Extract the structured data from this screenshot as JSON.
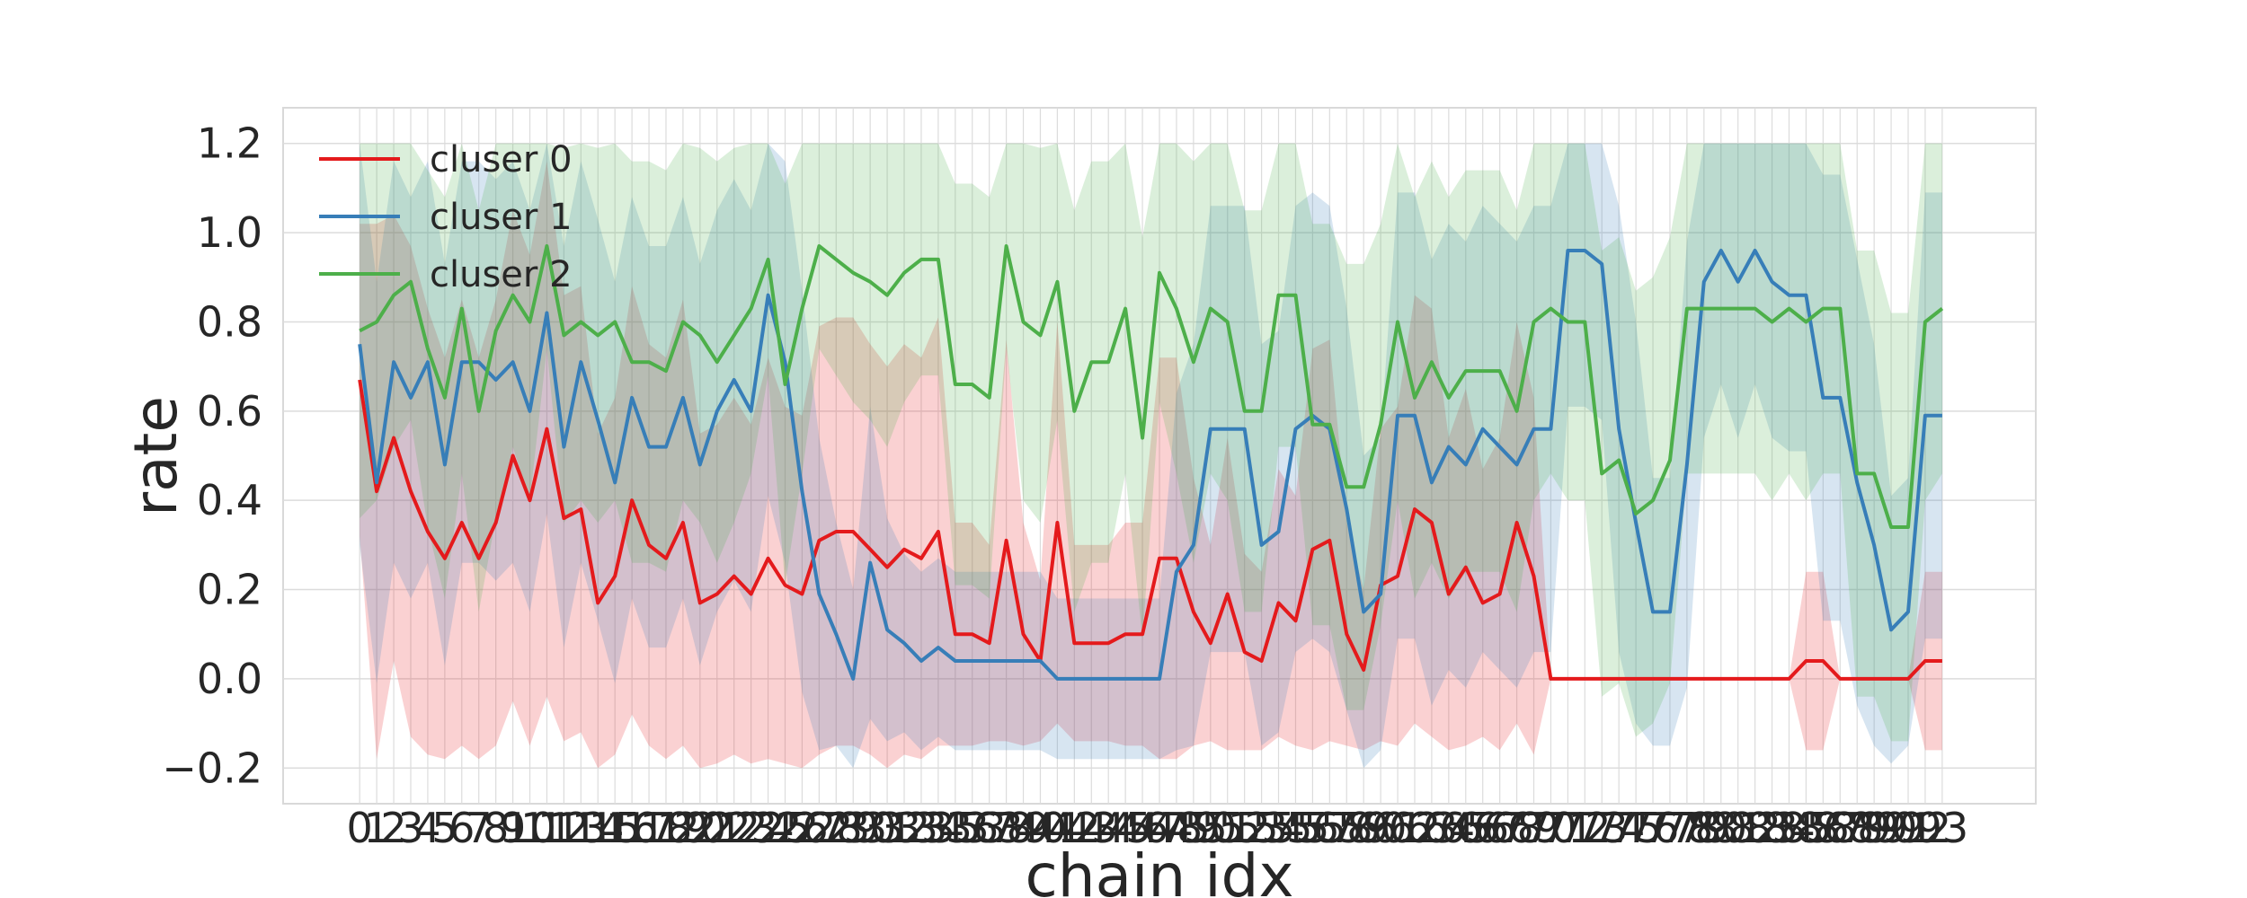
{
  "chart_data": {
    "type": "line",
    "xlabel": "chain  idx",
    "ylabel": "rate",
    "x_ticks": [
      "0",
      "1",
      "2",
      "3",
      "4",
      "5",
      "6",
      "7",
      "8",
      "9",
      "10",
      "11",
      "12",
      "13",
      "14",
      "15",
      "16",
      "17",
      "18",
      "19",
      "20",
      "21",
      "22",
      "23",
      "24",
      "25",
      "26",
      "27",
      "28",
      "29",
      "30",
      "31",
      "32",
      "33",
      "34",
      "35",
      "36",
      "37",
      "38",
      "39",
      "40",
      "41",
      "42",
      "43",
      "44",
      "45",
      "46",
      "47",
      "48",
      "49",
      "50",
      "51",
      "52",
      "53",
      "54",
      "55",
      "56",
      "57",
      "58",
      "59",
      "60",
      "61",
      "62",
      "63",
      "64",
      "65",
      "66",
      "67",
      "68",
      "69",
      "70",
      "71",
      "72",
      "73",
      "74",
      "75",
      "76",
      "77",
      "78",
      "79",
      "80",
      "81",
      "82",
      "83",
      "84",
      "85",
      "86",
      "87",
      "88",
      "89",
      "90",
      "91",
      "92",
      "93"
    ],
    "xlim": [
      -4.5,
      98.5
    ],
    "ylim": [
      -0.28,
      1.28
    ],
    "y_ticks": [
      -0.2,
      0.0,
      0.2,
      0.4,
      0.6,
      0.8,
      1.0,
      1.2
    ],
    "y_tick_labels": [
      "−0.2",
      "0.0",
      "0.2",
      "0.4",
      "0.6",
      "0.8",
      "1.0",
      "1.2"
    ],
    "grid": true,
    "legend_position": "top-left",
    "series": [
      {
        "name": "cluser 0",
        "color": "#e41a1c",
        "values": [
          0.67,
          0.42,
          0.54,
          0.42,
          0.33,
          0.27,
          0.35,
          0.27,
          0.35,
          0.5,
          0.4,
          0.56,
          0.36,
          0.38,
          0.17,
          0.23,
          0.4,
          0.3,
          0.27,
          0.35,
          0.17,
          0.19,
          0.23,
          0.19,
          0.27,
          0.21,
          0.19,
          0.31,
          0.33,
          0.33,
          0.29,
          0.25,
          0.29,
          0.27,
          0.33,
          0.1,
          0.1,
          0.08,
          0.31,
          0.1,
          0.04,
          0.35,
          0.08,
          0.08,
          0.08,
          0.1,
          0.1,
          0.27,
          0.27,
          0.15,
          0.08,
          0.19,
          0.06,
          0.04,
          0.17,
          0.13,
          0.29,
          0.31,
          0.1,
          0.02,
          0.21,
          0.23,
          0.38,
          0.35,
          0.19,
          0.25,
          0.17,
          0.19,
          0.35,
          0.23,
          0,
          0,
          0,
          0,
          0,
          0,
          0,
          0,
          0,
          0,
          0,
          0,
          0,
          0,
          0,
          0.04,
          0.04,
          0,
          0,
          0,
          0,
          0,
          0.04,
          0.04
        ],
        "band": [
          0.35,
          0.6,
          0.5,
          0.55,
          0.5,
          0.45,
          0.5,
          0.45,
          0.5,
          0.55,
          0.55,
          0.6,
          0.5,
          0.5,
          0.38,
          0.4,
          0.48,
          0.45,
          0.45,
          0.5,
          0.38,
          0.38,
          0.4,
          0.38,
          0.45,
          0.4,
          0.4,
          0.48,
          0.48,
          0.48,
          0.46,
          0.45,
          0.46,
          0.45,
          0.48,
          0.25,
          0.25,
          0.22,
          0.45,
          0.25,
          0.18,
          0.45,
          0.22,
          0.22,
          0.22,
          0.25,
          0.25,
          0.45,
          0.45,
          0.3,
          0.22,
          0.35,
          0.22,
          0.2,
          0.3,
          0.28,
          0.45,
          0.45,
          0.25,
          0.18,
          0.35,
          0.38,
          0.48,
          0.48,
          0.35,
          0.4,
          0.3,
          0.35,
          0.45,
          0.4,
          0,
          0,
          0,
          0,
          0,
          0,
          0,
          0,
          0,
          0,
          0,
          0,
          0,
          0,
          0,
          0.2,
          0.2,
          0,
          0,
          0,
          0,
          0,
          0.2,
          0.2
        ]
      },
      {
        "name": "cluser 1",
        "color": "#377eb8",
        "values": [
          0.75,
          0.44,
          0.71,
          0.63,
          0.71,
          0.48,
          0.71,
          0.71,
          0.67,
          0.71,
          0.6,
          0.82,
          0.52,
          0.71,
          0.58,
          0.44,
          0.63,
          0.52,
          0.52,
          0.63,
          0.48,
          0.6,
          0.67,
          0.6,
          0.86,
          0.71,
          0.42,
          0.19,
          0.1,
          0,
          0.26,
          0.11,
          0.08,
          0.04,
          0.07,
          0.04,
          0.04,
          0.04,
          0.04,
          0.04,
          0.04,
          0,
          0,
          0,
          0,
          0,
          0,
          0,
          0.24,
          0.3,
          0.56,
          0.56,
          0.56,
          0.3,
          0.33,
          0.56,
          0.59,
          0.56,
          0.38,
          0.15,
          0.19,
          0.59,
          0.59,
          0.44,
          0.52,
          0.48,
          0.56,
          0.52,
          0.48,
          0.56,
          0.56,
          0.96,
          0.96,
          0.93,
          0.56,
          0.35,
          0.15,
          0.15,
          0.48,
          0.89,
          0.96,
          0.89,
          0.96,
          0.89,
          0.86,
          0.86,
          0.63,
          0.63,
          0.44,
          0.3,
          0.11,
          0.15,
          0.59,
          0.59
        ],
        "band": [
          0.45,
          0.45,
          0.45,
          0.45,
          0.45,
          0.45,
          0.45,
          0.45,
          0.45,
          0.45,
          0.45,
          0.45,
          0.45,
          0.45,
          0.45,
          0.45,
          0.45,
          0.45,
          0.45,
          0.45,
          0.45,
          0.45,
          0.45,
          0.45,
          0.45,
          0.45,
          0.45,
          0.35,
          0.25,
          0.2,
          0.35,
          0.25,
          0.2,
          0.2,
          0.2,
          0.2,
          0.2,
          0.2,
          0.2,
          0.2,
          0.2,
          0.18,
          0.18,
          0.18,
          0.18,
          0.18,
          0.18,
          0.18,
          0.4,
          0.45,
          0.5,
          0.5,
          0.5,
          0.45,
          0.45,
          0.5,
          0.5,
          0.5,
          0.45,
          0.35,
          0.35,
          0.5,
          0.5,
          0.5,
          0.5,
          0.5,
          0.5,
          0.5,
          0.5,
          0.5,
          0.5,
          0.35,
          0.35,
          0.35,
          0.5,
          0.45,
          0.3,
          0.3,
          0.5,
          0.35,
          0.3,
          0.35,
          0.3,
          0.35,
          0.35,
          0.35,
          0.5,
          0.5,
          0.5,
          0.45,
          0.3,
          0.3,
          0.5,
          0.5
        ]
      },
      {
        "name": "cluser 2",
        "color": "#4daf4a",
        "values": [
          0.78,
          0.8,
          0.86,
          0.89,
          0.74,
          0.63,
          0.83,
          0.6,
          0.78,
          0.86,
          0.8,
          0.97,
          0.77,
          0.8,
          0.77,
          0.8,
          0.71,
          0.71,
          0.69,
          0.8,
          0.77,
          0.71,
          0.77,
          0.83,
          0.94,
          0.66,
          0.83,
          0.97,
          0.94,
          0.91,
          0.89,
          0.86,
          0.91,
          0.94,
          0.94,
          0.66,
          0.66,
          0.63,
          0.97,
          0.8,
          0.77,
          0.89,
          0.6,
          0.71,
          0.71,
          0.83,
          0.54,
          0.91,
          0.83,
          0.71,
          0.83,
          0.8,
          0.6,
          0.6,
          0.86,
          0.86,
          0.57,
          0.57,
          0.43,
          0.43,
          0.57,
          0.8,
          0.63,
          0.71,
          0.63,
          0.69,
          0.69,
          0.69,
          0.6,
          0.8,
          0.83,
          0.8,
          0.8,
          0.46,
          0.49,
          0.37,
          0.4,
          0.49,
          0.83,
          0.83,
          0.83,
          0.83,
          0.83,
          0.8,
          0.83,
          0.8,
          0.83,
          0.83,
          0.46,
          0.46,
          0.34,
          0.34,
          0.8,
          0.83
        ],
        "band": [
          0.42,
          0.4,
          0.34,
          0.31,
          0.4,
          0.45,
          0.37,
          0.45,
          0.42,
          0.34,
          0.4,
          0.23,
          0.42,
          0.4,
          0.42,
          0.4,
          0.45,
          0.45,
          0.45,
          0.4,
          0.42,
          0.45,
          0.42,
          0.37,
          0.26,
          0.45,
          0.37,
          0.23,
          0.26,
          0.29,
          0.31,
          0.34,
          0.29,
          0.26,
          0.26,
          0.45,
          0.45,
          0.45,
          0.23,
          0.4,
          0.42,
          0.31,
          0.45,
          0.45,
          0.45,
          0.37,
          0.45,
          0.29,
          0.37,
          0.45,
          0.37,
          0.4,
          0.45,
          0.45,
          0.34,
          0.34,
          0.45,
          0.45,
          0.5,
          0.5,
          0.45,
          0.4,
          0.45,
          0.45,
          0.45,
          0.45,
          0.45,
          0.45,
          0.45,
          0.4,
          0.37,
          0.4,
          0.4,
          0.5,
          0.5,
          0.5,
          0.5,
          0.5,
          0.37,
          0.37,
          0.37,
          0.37,
          0.37,
          0.4,
          0.37,
          0.4,
          0.37,
          0.37,
          0.5,
          0.5,
          0.48,
          0.48,
          0.4,
          0.37
        ]
      }
    ]
  }
}
